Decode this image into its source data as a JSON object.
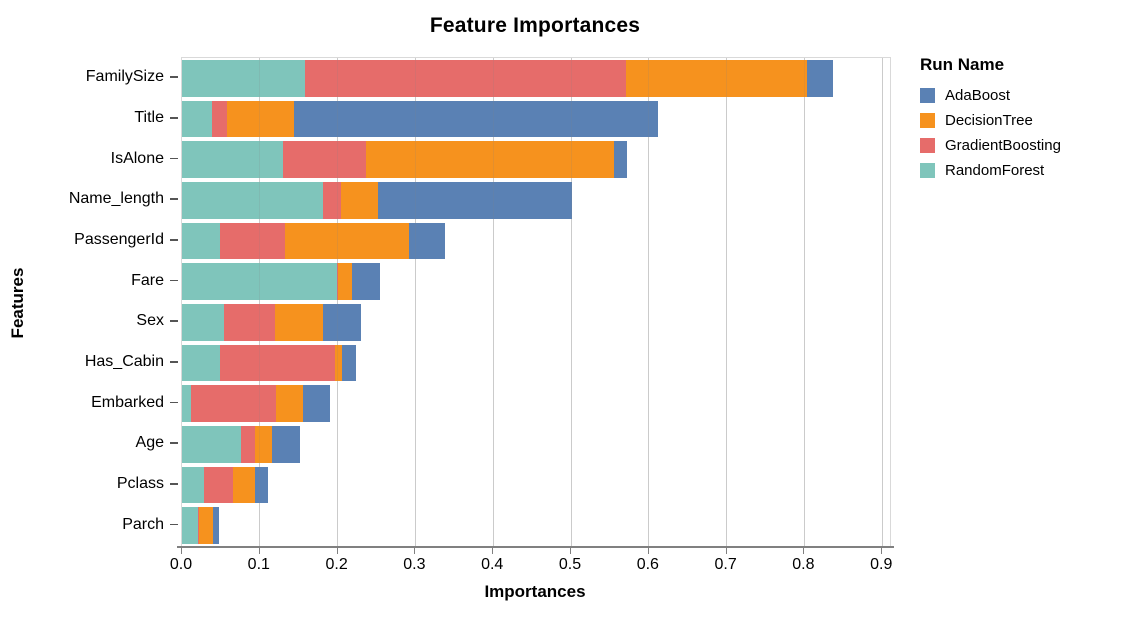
{
  "chart_data": {
    "type": "bar",
    "orientation": "horizontal",
    "stacked": true,
    "title": "Feature Importances",
    "xlabel": "Importances",
    "ylabel": "Features",
    "xlim": [
      0,
      0.91
    ],
    "xticks": [
      0.0,
      0.1,
      0.2,
      0.3,
      0.4,
      0.5,
      0.6,
      0.7,
      0.8,
      0.9
    ],
    "grid": "vertical",
    "categories": [
      "FamilySize",
      "Title",
      "IsAlone",
      "Name_length",
      "PassengerId",
      "Fare",
      "Sex",
      "Has_Cabin",
      "Embarked",
      "Age",
      "Pclass",
      "Parch"
    ],
    "series": [
      {
        "name": "RandomForest",
        "color": "#7fc5bb",
        "values": [
          0.158,
          0.039,
          0.13,
          0.181,
          0.049,
          0.199,
          0.054,
          0.049,
          0.011,
          0.076,
          0.028,
          0.02
        ]
      },
      {
        "name": "GradientBoosting",
        "color": "#e66c6a",
        "values": [
          0.413,
          0.019,
          0.106,
          0.024,
          0.084,
          0.002,
          0.065,
          0.148,
          0.11,
          0.018,
          0.038,
          0.002
        ]
      },
      {
        "name": "DecisionTree",
        "color": "#f6921e",
        "values": [
          0.232,
          0.086,
          0.319,
          0.047,
          0.159,
          0.017,
          0.062,
          0.009,
          0.034,
          0.022,
          0.028,
          0.018
        ]
      },
      {
        "name": "AdaBoost",
        "color": "#5a81b4",
        "values": [
          0.034,
          0.468,
          0.017,
          0.249,
          0.046,
          0.037,
          0.049,
          0.018,
          0.035,
          0.036,
          0.016,
          0.007
        ]
      }
    ],
    "legend": {
      "title": "Run Name",
      "position": "right",
      "items": [
        "AdaBoost",
        "DecisionTree",
        "GradientBoosting",
        "RandomForest"
      ]
    },
    "colors": {
      "gridline": "#d9d9d9",
      "axis_line": "#808080",
      "tick": "#555555",
      "text": "#000000",
      "background": "#ffffff"
    }
  }
}
